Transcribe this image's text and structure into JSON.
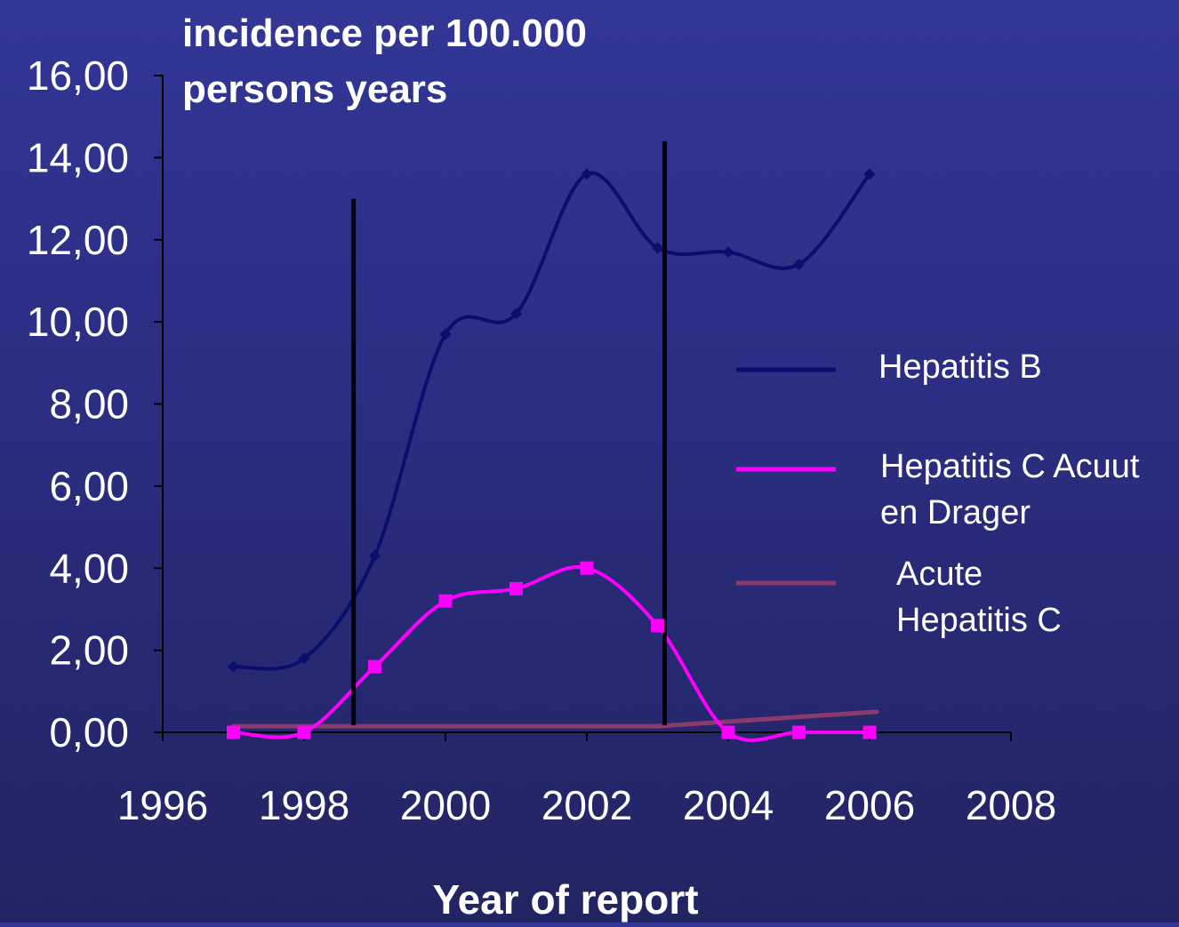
{
  "chart_data": {
    "type": "line",
    "title": "incidence per 100.000 persons years",
    "title_lines": [
      "incidence per 100.000",
      "persons years"
    ],
    "xlabel": "Year of report",
    "ylabel": "",
    "xlim": [
      1996,
      2008
    ],
    "ylim": [
      0,
      16
    ],
    "x_ticks": [
      1996,
      1998,
      2000,
      2002,
      2004,
      2006,
      2008
    ],
    "x_tick_labels": [
      "1996",
      "1998",
      "2000",
      "2002",
      "2004",
      "2006",
      "2008"
    ],
    "y_ticks": [
      0,
      2,
      4,
      6,
      8,
      10,
      12,
      14,
      16
    ],
    "y_tick_labels": [
      "0,00",
      "2,00",
      "4,00",
      "6,00",
      "8,00",
      "10,00",
      "12,00",
      "14,00",
      "16,00"
    ],
    "grid": false,
    "legend_position": "right",
    "series": [
      {
        "name": "Hepatitis B",
        "color": "#0a0f6e",
        "marker": "diamond",
        "x": [
          1997,
          1998,
          1999,
          2000,
          2001,
          2002,
          2003,
          2004,
          2005,
          2006
        ],
        "values": [
          1.6,
          1.8,
          4.3,
          9.7,
          10.2,
          13.6,
          11.8,
          11.7,
          11.4,
          13.6
        ]
      },
      {
        "name": "Hepatitis C Acuut en Drager",
        "legend_lines": [
          "Hepatitis C Acuut",
          "en Drager"
        ],
        "color": "#ff00ff",
        "marker": "square",
        "x": [
          1997,
          1998,
          1999,
          2000,
          2001,
          2002,
          2003,
          2004,
          2005,
          2006
        ],
        "values": [
          0.0,
          0.0,
          1.6,
          3.2,
          3.5,
          4.0,
          2.6,
          0.0,
          0.0,
          0.0
        ]
      },
      {
        "name": "Acute Hepatitis C",
        "legend_lines": [
          "Acute",
          "Hepatitis C"
        ],
        "color": "#8c3a6e",
        "marker": "none",
        "x": [
          1997,
          2003,
          2006.1
        ],
        "values": [
          0.15,
          0.15,
          0.5
        ]
      }
    ],
    "annotations": [
      {
        "type": "vertical-line",
        "x": 1998.7,
        "y_top": 13.0,
        "color": "#000000"
      },
      {
        "type": "vertical-line",
        "x": 2003.1,
        "y_top": 14.4,
        "color": "#000000"
      }
    ]
  }
}
